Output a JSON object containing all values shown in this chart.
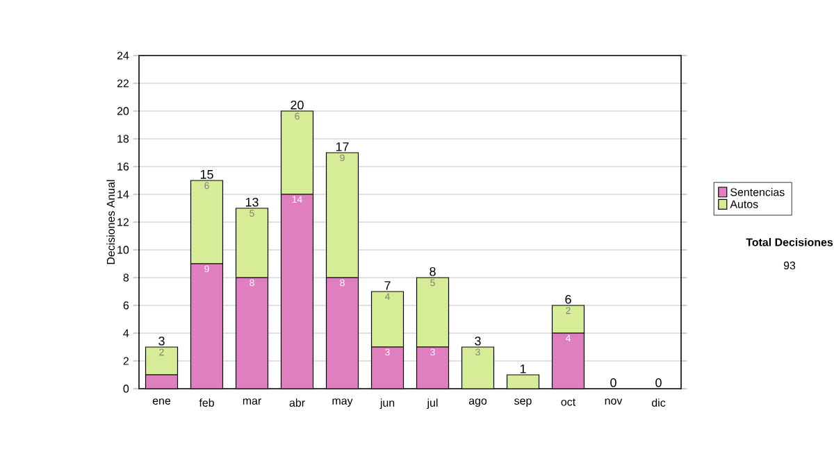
{
  "chart_data": {
    "type": "bar",
    "stacked": true,
    "categories": [
      "ene",
      "feb",
      "mar",
      "abr",
      "may",
      "jun",
      "jul",
      "ago",
      "sep",
      "oct",
      "nov",
      "dic"
    ],
    "series": [
      {
        "name": "Sentencias",
        "color": "#e07fc0",
        "values": [
          1,
          9,
          8,
          14,
          8,
          3,
          3,
          0,
          0,
          4,
          0,
          0
        ],
        "value_labels": [
          null,
          "9",
          "8",
          "14",
          "8",
          "3",
          "3",
          null,
          null,
          "4",
          null,
          null
        ]
      },
      {
        "name": "Autos",
        "color": "#d6ec96",
        "values": [
          2,
          6,
          5,
          6,
          9,
          4,
          5,
          3,
          1,
          2,
          0,
          0
        ],
        "value_labels": [
          "2",
          "6",
          "5",
          "6",
          "9",
          "4",
          "5",
          "3",
          null,
          "2",
          null,
          null
        ]
      }
    ],
    "totals": [
      "3",
      "15",
      "13",
      "20",
      "17",
      "7",
      "8",
      "3",
      "1",
      "6",
      "0",
      "0"
    ],
    "ylabel": "Decisiones Anual",
    "ylim": [
      0,
      24
    ],
    "yticks": [
      0,
      2,
      4,
      6,
      8,
      10,
      12,
      14,
      16,
      18,
      20,
      22,
      24
    ],
    "grid": "y",
    "legend": "right",
    "annotations": [
      "**Total Decisiones**",
      "93"
    ]
  }
}
